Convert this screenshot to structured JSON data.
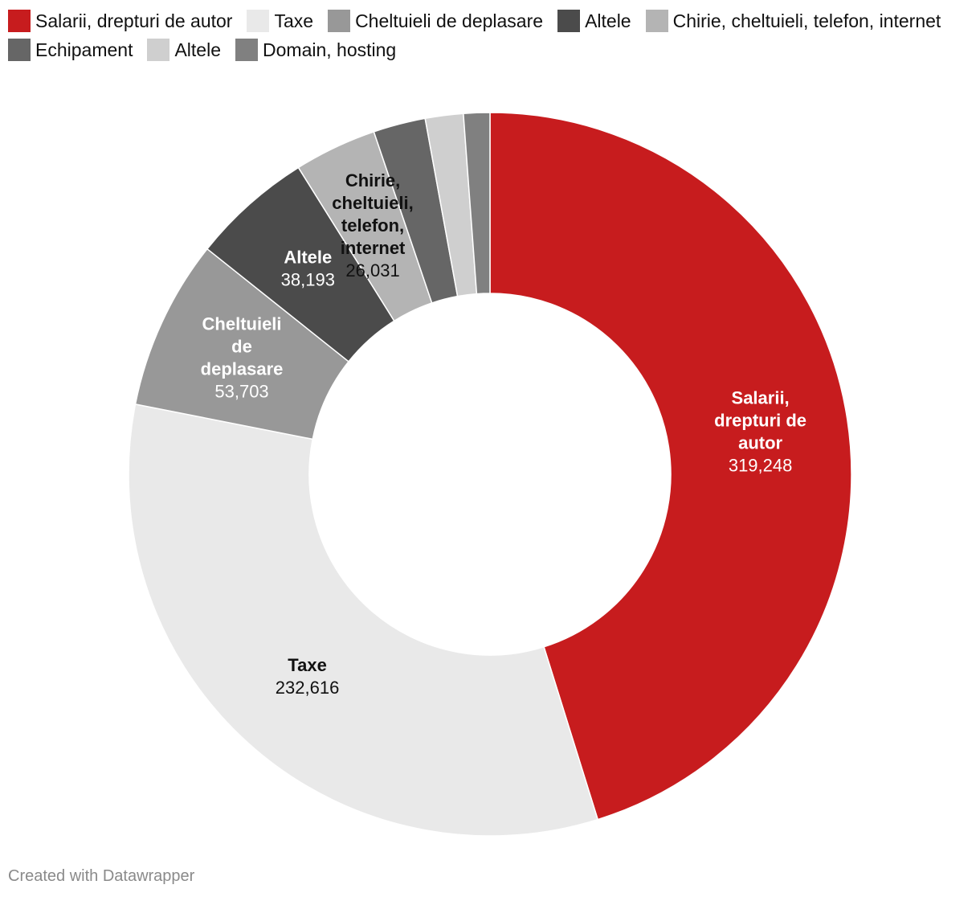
{
  "chart_data": {
    "type": "pie",
    "variant": "donut",
    "slices": [
      {
        "label": "Salarii, drepturi de autor",
        "value": 319248,
        "color": "#c71c1e",
        "value_text": "319,248",
        "label_lines": [
          "Salarii,",
          "drepturi de",
          "autor"
        ],
        "text_color": "#ffffff"
      },
      {
        "label": "Taxe",
        "value": 232616,
        "color": "#e9e9e9",
        "value_text": "232,616",
        "label_lines": [
          "Taxe"
        ],
        "text_color": "#111111"
      },
      {
        "label": "Cheltuieli de deplasare",
        "value": 53703,
        "color": "#989898",
        "value_text": "53,703",
        "label_lines": [
          "Cheltuieli",
          "de",
          "deplasare"
        ],
        "text_color": "#ffffff"
      },
      {
        "label": "Altele",
        "value": 38193,
        "color": "#4b4b4b",
        "value_text": "38,193",
        "label_lines": [
          "Altele"
        ],
        "text_color": "#ffffff"
      },
      {
        "label": "Chirie, cheltuieli, telefon, internet",
        "value": 26031,
        "color": "#b4b4b4",
        "value_text": "26,031",
        "label_lines": [
          "Chirie,",
          "cheltuieli,",
          "telefon,",
          "internet"
        ],
        "text_color": "#111111"
      },
      {
        "label": "Echipament",
        "value": 16500,
        "color": "#666666",
        "value_text": null,
        "label_lines": [],
        "text_color": "#111111"
      },
      {
        "label": "Altele",
        "value": 12000,
        "color": "#cfcfcf",
        "value_text": null,
        "label_lines": [],
        "text_color": "#111111"
      },
      {
        "label": "Domain, hosting",
        "value": 8300,
        "color": "#808080",
        "value_text": null,
        "label_lines": [],
        "text_color": "#111111"
      }
    ]
  },
  "footer": {
    "credit": "Created with Datawrapper"
  }
}
